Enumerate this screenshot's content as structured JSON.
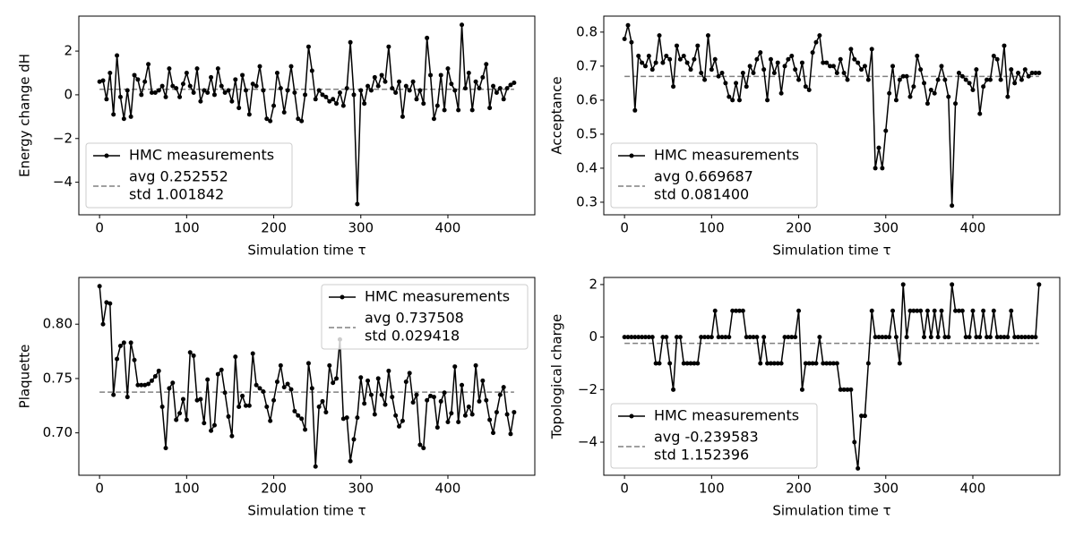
{
  "chart_data": [
    {
      "type": "line",
      "xlabel": "Simulation time τ",
      "ylabel": "Energy change dH",
      "x": [
        0,
        4,
        8,
        12,
        16,
        20,
        24,
        28,
        32,
        36,
        40,
        44,
        48,
        52,
        56,
        60,
        64,
        68,
        72,
        76,
        80,
        84,
        88,
        92,
        96,
        100,
        104,
        108,
        112,
        116,
        120,
        124,
        128,
        132,
        136,
        140,
        144,
        148,
        152,
        156,
        160,
        164,
        168,
        172,
        176,
        180,
        184,
        188,
        192,
        196,
        200,
        204,
        208,
        212,
        216,
        220,
        224,
        228,
        232,
        236,
        240,
        244,
        248,
        252,
        256,
        260,
        264,
        268,
        272,
        276,
        280,
        284,
        288,
        292,
        296,
        300,
        304,
        308,
        312,
        316,
        320,
        324,
        328,
        332,
        336,
        340,
        344,
        348,
        352,
        356,
        360,
        364,
        368,
        372,
        376,
        380,
        384,
        388,
        392,
        396,
        400,
        404,
        408,
        412,
        416,
        420,
        424,
        428,
        432,
        436,
        440,
        444,
        448,
        452,
        456,
        460,
        464,
        468,
        472,
        476
      ],
      "series": [
        {
          "name": "HMC measurements",
          "color": "#000000",
          "values": [
            0.6,
            0.65,
            -0.2,
            1.0,
            -0.9,
            1.8,
            -0.1,
            -1.1,
            0.2,
            -1.0,
            0.9,
            0.7,
            0.0,
            0.6,
            1.4,
            0.1,
            0.1,
            0.2,
            0.4,
            -0.1,
            1.2,
            0.4,
            0.3,
            -0.1,
            0.5,
            1.0,
            0.4,
            0.1,
            1.2,
            -0.3,
            0.2,
            0.1,
            0.8,
            0.0,
            1.2,
            0.4,
            0.1,
            0.2,
            -0.3,
            0.7,
            -0.6,
            0.9,
            0.2,
            -0.9,
            0.5,
            0.4,
            1.3,
            0.2,
            -1.1,
            -1.2,
            -0.5,
            1.0,
            0.3,
            -0.8,
            0.2,
            1.3,
            0.1,
            -1.1,
            -1.2,
            0.0,
            2.2,
            1.1,
            -0.2,
            0.2,
            0.0,
            -0.1,
            -0.3,
            -0.2,
            -0.4,
            0.1,
            -0.5,
            0.3,
            2.4,
            0.0,
            -5.0,
            0.2,
            -0.4,
            0.4,
            0.2,
            0.8,
            0.4,
            0.9,
            0.6,
            2.2,
            0.3,
            0.1,
            0.6,
            -1.0,
            0.4,
            0.2,
            0.6,
            -0.2,
            0.2,
            -0.4,
            2.6,
            0.9,
            -1.1,
            -0.5,
            0.9,
            -0.7,
            1.2,
            0.5,
            0.2,
            -0.7,
            3.2,
            0.3,
            1.0,
            -0.7,
            0.6,
            0.3,
            0.8,
            1.4,
            -0.6,
            0.4,
            0.1,
            0.3,
            -0.2,
            0.3,
            0.45,
            0.55
          ]
        }
      ],
      "avg_line": {
        "label": [
          "avg 0.252552",
          "std 1.001842"
        ],
        "value": 0.252552,
        "color": "#808080"
      },
      "xlim": [
        -23.8,
        499.8
      ],
      "ylim": [
        -5.49,
        3.6
      ],
      "xticks": [
        0,
        100,
        200,
        300,
        400
      ],
      "yticks": [
        {
          "value": -4,
          "label": "−4"
        },
        {
          "value": -2,
          "label": "−2"
        },
        0,
        2
      ],
      "legend": "lower left"
    },
    {
      "type": "line",
      "xlabel": "Simulation time τ",
      "ylabel": "Acceptance",
      "x": [
        0,
        4,
        8,
        12,
        16,
        20,
        24,
        28,
        32,
        36,
        40,
        44,
        48,
        52,
        56,
        60,
        64,
        68,
        72,
        76,
        80,
        84,
        88,
        92,
        96,
        100,
        104,
        108,
        112,
        116,
        120,
        124,
        128,
        132,
        136,
        140,
        144,
        148,
        152,
        156,
        160,
        164,
        168,
        172,
        176,
        180,
        184,
        188,
        192,
        196,
        200,
        204,
        208,
        212,
        216,
        220,
        224,
        228,
        232,
        236,
        240,
        244,
        248,
        252,
        256,
        260,
        264,
        268,
        272,
        276,
        280,
        284,
        288,
        292,
        296,
        300,
        304,
        308,
        312,
        316,
        320,
        324,
        328,
        332,
        336,
        340,
        344,
        348,
        352,
        356,
        360,
        364,
        368,
        372,
        376,
        380,
        384,
        388,
        392,
        396,
        400,
        404,
        408,
        412,
        416,
        420,
        424,
        428,
        432,
        436,
        440,
        444,
        448,
        452,
        456,
        460,
        464,
        468,
        472,
        476
      ],
      "series": [
        {
          "name": "HMC measurements",
          "color": "#000000",
          "values": [
            0.78,
            0.82,
            0.77,
            0.57,
            0.73,
            0.71,
            0.7,
            0.73,
            0.69,
            0.71,
            0.79,
            0.71,
            0.73,
            0.72,
            0.64,
            0.76,
            0.72,
            0.73,
            0.71,
            0.69,
            0.72,
            0.76,
            0.68,
            0.66,
            0.79,
            0.69,
            0.72,
            0.67,
            0.68,
            0.65,
            0.61,
            0.6,
            0.65,
            0.6,
            0.68,
            0.64,
            0.7,
            0.68,
            0.72,
            0.74,
            0.69,
            0.6,
            0.72,
            0.68,
            0.71,
            0.62,
            0.7,
            0.72,
            0.73,
            0.69,
            0.66,
            0.71,
            0.64,
            0.63,
            0.74,
            0.77,
            0.79,
            0.71,
            0.71,
            0.7,
            0.7,
            0.68,
            0.72,
            0.68,
            0.66,
            0.75,
            0.72,
            0.71,
            0.69,
            0.7,
            0.66,
            0.75,
            0.4,
            0.46,
            0.4,
            0.51,
            0.62,
            0.7,
            0.6,
            0.66,
            0.67,
            0.67,
            0.61,
            0.64,
            0.73,
            0.69,
            0.65,
            0.59,
            0.63,
            0.62,
            0.66,
            0.7,
            0.66,
            0.61,
            0.29,
            0.59,
            0.68,
            0.67,
            0.66,
            0.65,
            0.63,
            0.69,
            0.56,
            0.64,
            0.66,
            0.66,
            0.73,
            0.72,
            0.66,
            0.76,
            0.61,
            0.69,
            0.65,
            0.68,
            0.66,
            0.69,
            0.67,
            0.68,
            0.68,
            0.68
          ]
        }
      ],
      "avg_line": {
        "label": [
          "avg 0.669687",
          "std 0.081400"
        ],
        "value": 0.669687,
        "color": "#808080"
      },
      "xlim": [
        -23.8,
        499.8
      ],
      "ylim": [
        0.263,
        0.847
      ],
      "xticks": [
        0,
        100,
        200,
        300,
        400
      ],
      "yticks": [
        0.3,
        0.4,
        0.5,
        0.6,
        0.7,
        0.8
      ],
      "legend": "lower left"
    },
    {
      "type": "line",
      "xlabel": "Simulation time τ",
      "ylabel": "Plaquette",
      "x": [
        0,
        4,
        8,
        12,
        16,
        20,
        24,
        28,
        32,
        36,
        40,
        44,
        48,
        52,
        56,
        60,
        64,
        68,
        72,
        76,
        80,
        84,
        88,
        92,
        96,
        100,
        104,
        108,
        112,
        116,
        120,
        124,
        128,
        132,
        136,
        140,
        144,
        148,
        152,
        156,
        160,
        164,
        168,
        172,
        176,
        180,
        184,
        188,
        192,
        196,
        200,
        204,
        208,
        212,
        216,
        220,
        224,
        228,
        232,
        236,
        240,
        244,
        248,
        252,
        256,
        260,
        264,
        268,
        272,
        276,
        280,
        284,
        288,
        292,
        296,
        300,
        304,
        308,
        312,
        316,
        320,
        324,
        328,
        332,
        336,
        340,
        344,
        348,
        352,
        356,
        360,
        364,
        368,
        372,
        376,
        380,
        384,
        388,
        392,
        396,
        400,
        404,
        408,
        412,
        416,
        420,
        424,
        428,
        432,
        436,
        440,
        444,
        448,
        452,
        456,
        460,
        464,
        468,
        472,
        476
      ],
      "series": [
        {
          "name": "HMC measurements",
          "color": "#000000",
          "values": [
            0.835,
            0.8,
            0.82,
            0.819,
            0.735,
            0.768,
            0.78,
            0.783,
            0.733,
            0.783,
            0.767,
            0.744,
            0.744,
            0.744,
            0.745,
            0.748,
            0.752,
            0.757,
            0.724,
            0.686,
            0.741,
            0.746,
            0.712,
            0.718,
            0.731,
            0.712,
            0.774,
            0.771,
            0.73,
            0.731,
            0.709,
            0.749,
            0.702,
            0.707,
            0.754,
            0.758,
            0.737,
            0.715,
            0.697,
            0.77,
            0.724,
            0.734,
            0.725,
            0.725,
            0.773,
            0.744,
            0.741,
            0.738,
            0.724,
            0.711,
            0.73,
            0.747,
            0.762,
            0.742,
            0.745,
            0.74,
            0.72,
            0.716,
            0.713,
            0.703,
            0.764,
            0.741,
            0.669,
            0.724,
            0.729,
            0.719,
            0.762,
            0.746,
            0.75,
            0.786,
            0.713,
            0.714,
            0.674,
            0.694,
            0.714,
            0.751,
            0.727,
            0.748,
            0.735,
            0.717,
            0.75,
            0.735,
            0.726,
            0.757,
            0.733,
            0.716,
            0.706,
            0.711,
            0.747,
            0.755,
            0.728,
            0.735,
            0.689,
            0.686,
            0.73,
            0.734,
            0.733,
            0.705,
            0.729,
            0.737,
            0.71,
            0.718,
            0.761,
            0.71,
            0.744,
            0.716,
            0.724,
            0.717,
            0.762,
            0.729,
            0.748,
            0.73,
            0.712,
            0.7,
            0.719,
            0.735,
            0.742,
            0.717,
            0.699,
            0.719
          ]
        }
      ],
      "avg_line": {
        "label": [
          "avg 0.737508",
          "std 0.029418"
        ],
        "value": 0.737508,
        "color": "#808080"
      },
      "xlim": [
        -23.8,
        499.8
      ],
      "ylim": [
        0.661,
        0.843
      ],
      "xticks": [
        0,
        100,
        200,
        300,
        400
      ],
      "yticks": [
        {
          "value": 0.7,
          "label": "0.70"
        },
        0.75,
        {
          "value": 0.8,
          "label": "0.80"
        }
      ],
      "legend": "upper right"
    },
    {
      "type": "line",
      "xlabel": "Simulation time τ",
      "ylabel": "Topological charge",
      "x": [
        0,
        4,
        8,
        12,
        16,
        20,
        24,
        28,
        32,
        36,
        40,
        44,
        48,
        52,
        56,
        60,
        64,
        68,
        72,
        76,
        80,
        84,
        88,
        92,
        96,
        100,
        104,
        108,
        112,
        116,
        120,
        124,
        128,
        132,
        136,
        140,
        144,
        148,
        152,
        156,
        160,
        164,
        168,
        172,
        176,
        180,
        184,
        188,
        192,
        196,
        200,
        204,
        208,
        212,
        216,
        220,
        224,
        228,
        232,
        236,
        240,
        244,
        248,
        252,
        256,
        260,
        264,
        268,
        272,
        276,
        280,
        284,
        288,
        292,
        296,
        300,
        304,
        308,
        312,
        316,
        320,
        324,
        328,
        332,
        336,
        340,
        344,
        348,
        352,
        356,
        360,
        364,
        368,
        372,
        376,
        380,
        384,
        388,
        392,
        396,
        400,
        404,
        408,
        412,
        416,
        420,
        424,
        428,
        432,
        436,
        440,
        444,
        448,
        452,
        456,
        460,
        464,
        468,
        472,
        476
      ],
      "series": [
        {
          "name": "HMC measurements",
          "color": "#000000",
          "values": [
            0,
            0,
            0,
            0,
            0,
            0,
            0,
            0,
            0,
            -1,
            -1,
            0,
            0,
            -1,
            -2,
            0,
            0,
            -1,
            -1,
            -1,
            -1,
            -1,
            0,
            0,
            0,
            0,
            1,
            0,
            0,
            0,
            0,
            1,
            1,
            1,
            1,
            0,
            0,
            0,
            0,
            -1,
            0,
            -1,
            -1,
            -1,
            -1,
            -1,
            0,
            0,
            0,
            0,
            1,
            -2,
            -1,
            -1,
            -1,
            -1,
            0,
            -1,
            -1,
            -1,
            -1,
            -1,
            -2,
            -2,
            -2,
            -2,
            -4,
            -5,
            -3,
            -3,
            -1,
            1,
            0,
            0,
            0,
            0,
            0,
            1,
            0,
            -1,
            2,
            0,
            1,
            1,
            1,
            1,
            0,
            1,
            0,
            1,
            0,
            1,
            0,
            0,
            2,
            1,
            1,
            1,
            0,
            0,
            1,
            0,
            0,
            1,
            0,
            0,
            1,
            0,
            0,
            0,
            0,
            1,
            0,
            0,
            0,
            0,
            0,
            0,
            0,
            2
          ]
        }
      ],
      "avg_line": {
        "label": [
          "avg -0.239583",
          "std 1.152396"
        ],
        "value": -0.239583,
        "color": "#808080"
      },
      "xlim": [
        -23.8,
        499.8
      ],
      "ylim": [
        -5.26,
        2.27
      ],
      "xticks": [
        0,
        100,
        200,
        300,
        400
      ],
      "yticks": [
        {
          "value": -4,
          "label": "−4"
        },
        {
          "value": -2,
          "label": "−2"
        },
        0,
        2
      ],
      "legend": "lower left"
    }
  ]
}
